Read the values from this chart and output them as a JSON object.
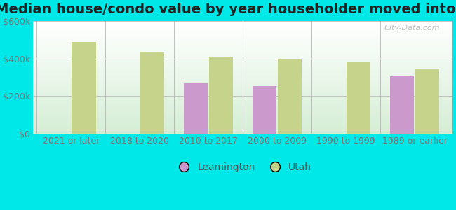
{
  "title": "Median house/condo value by year householder moved into unit",
  "categories": [
    "2021 or later",
    "2018 to 2020",
    "2010 to 2017",
    "2000 to 2009",
    "1990 to 1999",
    "1989 or earlier"
  ],
  "leamington_values": [
    null,
    null,
    270000,
    255000,
    null,
    305000
  ],
  "utah_values": [
    490000,
    435000,
    410000,
    400000,
    385000,
    345000
  ],
  "leamington_color": "#cc99cc",
  "utah_color": "#c5d48a",
  "background_outer": "#00e8e8",
  "background_inner_top": "#f0fff0",
  "background_inner_bottom": "#d8efd8",
  "ylim": [
    0,
    600000
  ],
  "yticks": [
    0,
    200000,
    400000,
    600000
  ],
  "ytick_labels": [
    "$0",
    "$200k",
    "$400k",
    "$600k"
  ],
  "watermark": "City-Data.com",
  "legend_labels": [
    "Leamington",
    "Utah"
  ],
  "title_fontsize": 14,
  "tick_fontsize": 9,
  "bar_width": 0.35,
  "bar_gap": 0.02
}
